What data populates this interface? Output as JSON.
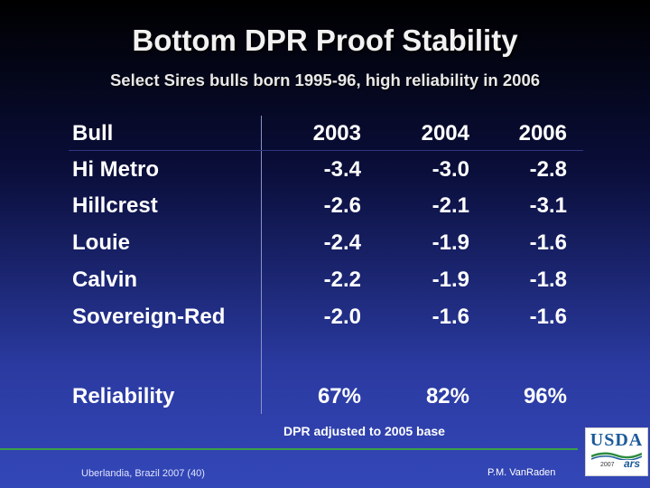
{
  "title": "Bottom DPR Proof Stability",
  "subtitle": "Select Sires bulls born 1995-96, high reliability in 2006",
  "table": {
    "header": {
      "label": "Bull",
      "years": [
        "2003",
        "2004",
        "2006"
      ]
    },
    "rows": [
      {
        "name": "Hi Metro",
        "values": [
          "-3.4",
          "-3.0",
          "-2.8"
        ]
      },
      {
        "name": "Hillcrest",
        "values": [
          "-2.6",
          "-2.1",
          "-3.1"
        ]
      },
      {
        "name": "Louie",
        "values": [
          "-2.4",
          "-1.9",
          "-1.6"
        ]
      },
      {
        "name": "Calvin",
        "values": [
          "-2.2",
          "-1.9",
          "-1.8"
        ]
      },
      {
        "name": "Sovereign-Red",
        "values": [
          "-2.0",
          "-1.6",
          "-1.6"
        ]
      }
    ],
    "reliability": {
      "label": "Reliability",
      "values": [
        "67%",
        "82%",
        "96%"
      ]
    }
  },
  "note": "DPR adjusted to 2005 base",
  "footer": {
    "left": "Uberlandia, Brazil 2007 (40)",
    "right": "P.M. VanRaden"
  },
  "logo": {
    "text": "USDA",
    "year": "2007",
    "ars": "ars"
  }
}
